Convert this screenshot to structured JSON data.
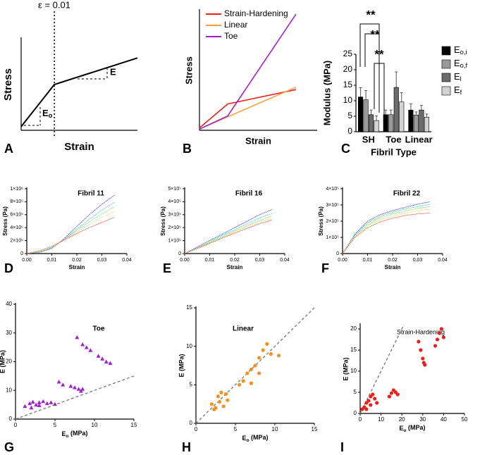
{
  "chart_data": [
    {
      "type": "line",
      "label": "A",
      "xlabel": "Strain",
      "ylabel": "Stress",
      "xlim": [
        0,
        0.035
      ],
      "ylim": [
        0,
        1
      ],
      "x": [
        0,
        0.01,
        0.035
      ],
      "vline": 0.01,
      "series": [
        {
          "color": "#000000",
          "values": [
            0.04,
            0.5,
            0.79
          ]
        }
      ],
      "annotations": [
        "ε = 0.01",
        "E",
        {
          "main": "E",
          "sub": "o"
        }
      ]
    },
    {
      "type": "line",
      "label": "B",
      "xlabel": "Strain",
      "ylabel": "Stress",
      "xlim": [
        0,
        1
      ],
      "ylim": [
        0,
        1
      ],
      "series": [
        {
          "name": "Strain-Hardening",
          "color": "#e8211d",
          "x": [
            0,
            0.24,
            0.82
          ],
          "values": [
            0.02,
            0.22,
            0.34
          ]
        },
        {
          "name": "Linear",
          "color": "#f5a142",
          "x": [
            0,
            0.82
          ],
          "values": [
            0.01,
            0.36
          ]
        },
        {
          "name": "Toe",
          "color": "#a020d0",
          "x": [
            0,
            0.24,
            0.82
          ],
          "values": [
            0.01,
            0.12,
            0.97
          ]
        }
      ]
    },
    {
      "type": "bar",
      "label": "C",
      "xlabel": "Fibril Type",
      "ylabel": "Modulus (MPa)",
      "categories": [
        "SH",
        "Toe",
        "Linear"
      ],
      "ylim": [
        0,
        25
      ],
      "yticks": [
        0,
        5,
        10,
        15,
        20,
        25
      ],
      "series": [
        {
          "name": {
            "main": "E",
            "sub": "o,i"
          },
          "color": "#000000",
          "values": [
            11.2,
            5.5,
            7.0
          ],
          "errors": [
            3.0,
            1.5,
            2.0
          ]
        },
        {
          "name": {
            "main": "E",
            "sub": "o,f"
          },
          "color": "#9a9a9a",
          "values": [
            10.3,
            5.5,
            5.4
          ],
          "errors": [
            3.0,
            1.5,
            1.0
          ]
        },
        {
          "name": {
            "main": "E",
            "sub": "l"
          },
          "color": "#6b6b6b",
          "values": [
            5.5,
            14.3,
            7.0
          ],
          "errors": [
            1.5,
            5.0,
            1.5
          ]
        },
        {
          "name": {
            "main": "E",
            "sub": "f"
          },
          "color": "#d3d3d3",
          "values": [
            3.6,
            9.6,
            4.7
          ],
          "errors": [
            1.5,
            3.0,
            1.0
          ]
        }
      ],
      "annotations": [
        "**",
        "**",
        "**"
      ]
    },
    {
      "type": "line",
      "label": "D",
      "title": "Fibril 11",
      "xlabel": "Strain",
      "ylabel": "Stress (Pa)",
      "xlim": [
        0,
        0.04
      ],
      "ylim": [
        0,
        1000000
      ],
      "xticks": [
        {
          "value": 0,
          "label": "0.00"
        },
        {
          "value": 0.01,
          "label": "0.01"
        },
        {
          "value": 0.02,
          "label": "0.02"
        },
        {
          "value": 0.03,
          "label": "0.03"
        },
        {
          "value": 0.04,
          "label": "0.04"
        }
      ],
      "yticks": [
        0,
        {
          "value": 200000,
          "label": "2×10⁵"
        },
        {
          "value": 400000,
          "label": "4×10⁵"
        },
        {
          "value": 600000,
          "label": "6×10⁵"
        },
        {
          "value": 800000,
          "label": "8×10⁵"
        },
        {
          "value": 1000000,
          "label": "1×10⁶"
        }
      ],
      "x": [
        0,
        0.005,
        0.01,
        0.015,
        0.02,
        0.025,
        0.03,
        0.035
      ],
      "series": [
        {
          "color": "#2b2bd8",
          "values": [
            0,
            20000,
            80000,
            230000,
            420000,
            600000,
            760000,
            900000
          ]
        },
        {
          "color": "#29c6e0",
          "values": [
            0,
            25000,
            90000,
            220000,
            380000,
            530000,
            670000,
            790000
          ]
        },
        {
          "color": "#6fdc5a",
          "values": [
            0,
            30000,
            95000,
            215000,
            360000,
            490000,
            610000,
            720000
          ]
        },
        {
          "color": "#f2d43a",
          "values": [
            0,
            35000,
            100000,
            210000,
            335000,
            450000,
            560000,
            650000
          ]
        },
        {
          "color": "#e03a2a",
          "values": [
            0,
            40000,
            110000,
            210000,
            310000,
            400000,
            480000,
            560000
          ]
        }
      ]
    },
    {
      "type": "line",
      "label": "E",
      "title": "Fibril 16",
      "xlabel": "Strain",
      "ylabel": "Stress (Pa)",
      "xlim": [
        0,
        0.04
      ],
      "ylim": [
        0,
        500000
      ],
      "xticks": [
        {
          "value": 0,
          "label": "0.00"
        },
        {
          "value": 0.01,
          "label": "0.01"
        },
        {
          "value": 0.02,
          "label": "0.02"
        },
        {
          "value": 0.03,
          "label": "0.03"
        },
        {
          "value": 0.04,
          "label": "0.04"
        }
      ],
      "yticks": [
        0,
        {
          "value": 100000,
          "label": "1×10⁵"
        },
        {
          "value": 200000,
          "label": "2×10⁵"
        },
        {
          "value": 300000,
          "label": "3×10⁵"
        },
        {
          "value": 400000,
          "label": "4×10⁵"
        },
        {
          "value": 500000,
          "label": "5×10⁵"
        }
      ],
      "x": [
        0,
        0.005,
        0.01,
        0.015,
        0.02,
        0.025,
        0.03,
        0.035
      ],
      "series": [
        {
          "color": "#2b2bd8",
          "values": [
            0,
            50000,
            100000,
            150000,
            200000,
            250000,
            300000,
            340000
          ]
        },
        {
          "color": "#29c6e0",
          "values": [
            0,
            45000,
            90000,
            140000,
            185000,
            230000,
            275000,
            310000
          ]
        },
        {
          "color": "#6fdc5a",
          "values": [
            0,
            42000,
            85000,
            130000,
            175000,
            215000,
            255000,
            290000
          ]
        },
        {
          "color": "#f2d43a",
          "values": [
            0,
            40000,
            82000,
            125000,
            165000,
            205000,
            240000,
            275000
          ]
        },
        {
          "color": "#e03a2a",
          "values": [
            0,
            38000,
            78000,
            120000,
            158000,
            195000,
            230000,
            260000
          ]
        }
      ]
    },
    {
      "type": "line",
      "label": "F",
      "title": "Fibril 22",
      "xlabel": "Strain",
      "ylabel": "Stress (Pa)",
      "xlim": [
        0,
        0.04
      ],
      "ylim": [
        0,
        400000
      ],
      "xticks": [
        {
          "value": 0,
          "label": "0.00"
        },
        {
          "value": 0.01,
          "label": "0.01"
        },
        {
          "value": 0.02,
          "label": "0.02"
        },
        {
          "value": 0.03,
          "label": "0.03"
        },
        {
          "value": 0.04,
          "label": "0.04"
        }
      ],
      "yticks": [
        0,
        {
          "value": 100000,
          "label": "1×10⁵"
        },
        {
          "value": 200000,
          "label": "2×10⁵"
        },
        {
          "value": 300000,
          "label": "3×10⁵"
        },
        {
          "value": 400000,
          "label": "4×10⁵"
        }
      ],
      "x": [
        0,
        0.005,
        0.01,
        0.015,
        0.02,
        0.025,
        0.03,
        0.035
      ],
      "series": [
        {
          "color": "#2b2bd8",
          "values": [
            0,
            120000,
            200000,
            240000,
            265000,
            285000,
            305000,
            320000
          ]
        },
        {
          "color": "#29c6e0",
          "values": [
            0,
            115000,
            190000,
            230000,
            255000,
            275000,
            290000,
            305000
          ]
        },
        {
          "color": "#6fdc5a",
          "values": [
            0,
            110000,
            180000,
            220000,
            245000,
            262000,
            278000,
            290000
          ]
        },
        {
          "color": "#f2d43a",
          "values": [
            0,
            105000,
            170000,
            208000,
            232000,
            250000,
            265000,
            275000
          ]
        },
        {
          "color": "#e03a2a",
          "values": [
            0,
            100000,
            160000,
            195000,
            218000,
            235000,
            245000,
            250000
          ]
        }
      ]
    },
    {
      "type": "scatter",
      "label": "G",
      "title": "Toe",
      "xlabel": {
        "main": "E",
        "sub": "o",
        "unit": " (MPa)"
      },
      "ylabel": "E (MPa)",
      "xlim": [
        0,
        15
      ],
      "ylim": [
        0,
        40
      ],
      "xticks": [
        0,
        5,
        10,
        15
      ],
      "yticks": [
        0,
        10,
        20,
        30,
        40
      ],
      "identity_line": true,
      "marker": "triangle",
      "series": [
        {
          "color": "#a020d0",
          "x": [
            1.2,
            1.8,
            2.2,
            2.6,
            3.0,
            3.5,
            4.0,
            4.5,
            5.0,
            2.0,
            3.0,
            5.5,
            6.0,
            7.0,
            7.5,
            8.0,
            8.3,
            8.5,
            7.8,
            8.5,
            9.0,
            9.5,
            10.5,
            11.0,
            11.5,
            12.0
          ],
          "values": [
            4.5,
            5.5,
            6.0,
            5.0,
            5.8,
            6.2,
            5.5,
            5.8,
            5.2,
            4.0,
            4.8,
            13.0,
            12.0,
            11.5,
            11.0,
            10.5,
            9.8,
            10.5,
            28.5,
            26.0,
            25.0,
            24.0,
            22.0,
            21.0,
            20.0,
            19.5
          ]
        }
      ]
    },
    {
      "type": "scatter",
      "label": "H",
      "title": "Linear",
      "xlabel": {
        "main": "E",
        "sub": "o",
        "unit": " (MPa)"
      },
      "ylabel": "E (MPa)",
      "xlim": [
        0,
        15
      ],
      "ylim": [
        0,
        15
      ],
      "xticks": [
        0,
        5,
        10,
        15
      ],
      "yticks": [
        0,
        5,
        10,
        15
      ],
      "identity_line": true,
      "marker": "circle",
      "series": [
        {
          "color": "#f5901e",
          "x": [
            2.0,
            2.5,
            3.0,
            3.5,
            4.0,
            2.8,
            3.2,
            3.8,
            2.3,
            5.5,
            6.0,
            6.5,
            7.0,
            7.5,
            8.0,
            8.5,
            9.0,
            9.5,
            10.5,
            8.0,
            7.0
          ],
          "values": [
            2.5,
            2.0,
            2.8,
            2.2,
            3.0,
            3.5,
            4.0,
            3.8,
            1.8,
            5.0,
            5.5,
            6.5,
            7.0,
            7.5,
            8.5,
            9.5,
            10.3,
            9.0,
            8.8,
            6.5,
            5.2
          ]
        }
      ]
    },
    {
      "type": "scatter",
      "label": "I",
      "title": "Strain-Hardening",
      "xlabel": {
        "main": "E",
        "sub": "o",
        "unit": " (MPa)"
      },
      "ylabel": "E (MPa)",
      "xlim": [
        0,
        50
      ],
      "ylim": [
        0,
        21
      ],
      "xticks": [
        0,
        10,
        20,
        30,
        40,
        50
      ],
      "yticks": [
        0,
        5,
        10,
        15,
        20
      ],
      "identity_line": true,
      "marker": "circle",
      "series": [
        {
          "color": "#e8211d",
          "x": [
            1,
            2,
            3,
            4,
            5,
            6,
            7,
            8,
            3,
            5,
            14,
            15,
            16,
            17,
            18,
            28,
            29,
            30,
            30.5,
            31,
            36,
            37,
            38,
            39,
            40
          ],
          "values": [
            1,
            1.5,
            2.5,
            3,
            4,
            4.5,
            3.5,
            2.5,
            1,
            2,
            4,
            4.8,
            5.5,
            5,
            4.5,
            17,
            15,
            13,
            12,
            11.5,
            16,
            17.5,
            19,
            20,
            18
          ]
        }
      ]
    }
  ]
}
